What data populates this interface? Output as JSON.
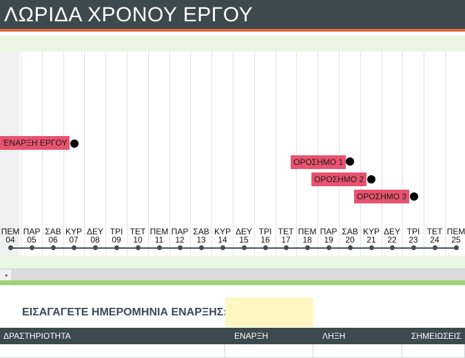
{
  "header": {
    "title": "ΛΩΡΙΔΑ ΧΡΟΝΟΥ ΕΡΓΟΥ"
  },
  "colors": {
    "header": "#3c4a50",
    "accent": "#e06a3a",
    "milestone": "#e8536f",
    "band": "#eaf6e1",
    "input": "#fff7c2"
  },
  "timeline": {
    "milestones": [
      {
        "label": "ΈΝΑΡΞΗ ΕΡΓΟΥ"
      },
      {
        "label": "ΟΡΟΣΗΜΟ 1"
      },
      {
        "label": "ΟΡΟΣΗΜΟ 2"
      },
      {
        "label": "ΟΡΟΣΗΜΟ 3"
      }
    ],
    "days": [
      {
        "dow": "ΠΕΜ",
        "day": "04"
      },
      {
        "dow": "ΠΑΡ",
        "day": "05"
      },
      {
        "dow": "ΣΑΒ",
        "day": "06"
      },
      {
        "dow": "ΚΥΡ",
        "day": "07"
      },
      {
        "dow": "ΔΕΥ",
        "day": "08"
      },
      {
        "dow": "ΤΡΙ",
        "day": "09"
      },
      {
        "dow": "ΤΕΤ",
        "day": "10"
      },
      {
        "dow": "ΠΕΜ",
        "day": "11"
      },
      {
        "dow": "ΠΑΡ",
        "day": "12"
      },
      {
        "dow": "ΣΑΒ",
        "day": "13"
      },
      {
        "dow": "ΚΥΡ",
        "day": "14"
      },
      {
        "dow": "ΔΕΥ",
        "day": "15"
      },
      {
        "dow": "ΤΡΙ",
        "day": "16"
      },
      {
        "dow": "ΤΕΤ",
        "day": "17"
      },
      {
        "dow": "ΠΕΜ",
        "day": "18"
      },
      {
        "dow": "ΠΑΡ",
        "day": "19"
      },
      {
        "dow": "ΣΑΒ",
        "day": "20"
      },
      {
        "dow": "ΚΥΡ",
        "day": "21"
      },
      {
        "dow": "ΔΕΥ",
        "day": "22"
      },
      {
        "dow": "ΤΡΙ",
        "day": "23"
      },
      {
        "dow": "ΤΕΤ",
        "day": "24"
      },
      {
        "dow": "ΠΕΜ",
        "day": "25"
      }
    ]
  },
  "form": {
    "start_label": "ΕΙΣΑΓΑΓΕΤΕ ΗΜΕΡΟΜΗΝΙΑ ΕΝΑΡΞΗΣ:",
    "start_value": ""
  },
  "table": {
    "headers": [
      "ΔΡΑΣΤΗΡΙΟΤΗΤΑ",
      "ΕΝΑΡΞΗ",
      "ΛΗΞΗ",
      "ΣΗΜΕΙΩΣΕΙΣ"
    ]
  }
}
